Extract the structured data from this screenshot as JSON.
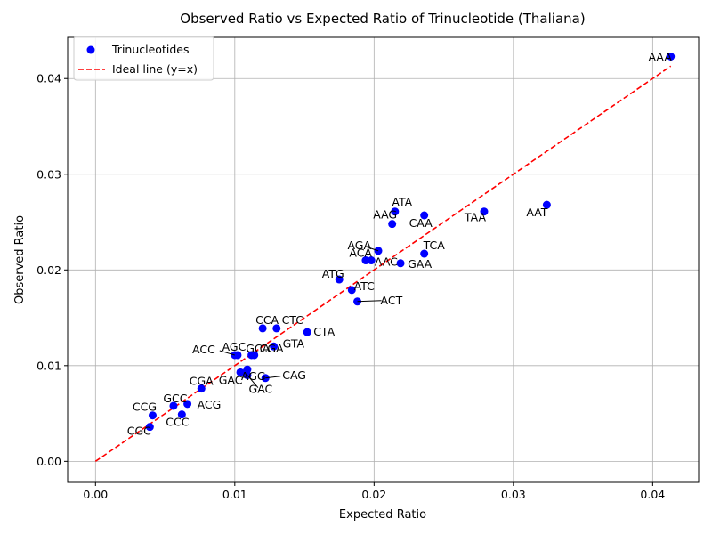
{
  "chart_data": {
    "type": "scatter",
    "title": "Observed Ratio vs Expected Ratio of Trinucleotide (Thaliana)",
    "xlabel": "Expected Ratio",
    "ylabel": "Observed Ratio",
    "xlim": [
      -0.002,
      0.0433
    ],
    "ylim": [
      -0.0022,
      0.0443
    ],
    "xticks": [
      "0.00",
      "0.01",
      "0.02",
      "0.03",
      "0.04"
    ],
    "yticks": [
      "0.00",
      "0.01",
      "0.02",
      "0.03",
      "0.04"
    ],
    "grid": true,
    "legend": {
      "position": "top-left",
      "entries": [
        "Trinucleotides",
        "Ideal line (y=x)"
      ]
    },
    "colors": {
      "points": "#0000ff",
      "ideal_line": "#ff0000"
    },
    "ideal_line": {
      "x": [
        0,
        0.0413
      ],
      "y": [
        0,
        0.0413
      ]
    },
    "points": [
      {
        "label": "AAA",
        "x": 0.0413,
        "y": 0.0423
      },
      {
        "label": "AAT",
        "x": 0.0324,
        "y": 0.0268
      },
      {
        "label": "TAA",
        "x": 0.0279,
        "y": 0.0261
      },
      {
        "label": "ATA",
        "x": 0.0215,
        "y": 0.0261
      },
      {
        "label": "CAA",
        "x": 0.0236,
        "y": 0.0257
      },
      {
        "label": "AAG",
        "x": 0.0213,
        "y": 0.0248
      },
      {
        "label": "AGA",
        "x": 0.0203,
        "y": 0.022
      },
      {
        "label": "TCA",
        "x": 0.0236,
        "y": 0.0217
      },
      {
        "label": "AAC",
        "x": 0.0194,
        "y": 0.021
      },
      {
        "label": "ACA",
        "x": 0.0198,
        "y": 0.021
      },
      {
        "label": "GAA",
        "x": 0.0219,
        "y": 0.0207
      },
      {
        "label": "ATG",
        "x": 0.0175,
        "y": 0.019
      },
      {
        "label": "ATC",
        "x": 0.0184,
        "y": 0.0179
      },
      {
        "label": "ACT",
        "x": 0.0188,
        "y": 0.0167
      },
      {
        "label": "CCA",
        "x": 0.012,
        "y": 0.0139
      },
      {
        "label": "CTC",
        "x": 0.013,
        "y": 0.0139
      },
      {
        "label": "CTA",
        "x": 0.0152,
        "y": 0.0135
      },
      {
        "label": "GTA",
        "x": 0.0128,
        "y": 0.012
      },
      {
        "label": "ACC",
        "x": 0.01,
        "y": 0.0111
      },
      {
        "label": "AGC",
        "x": 0.0102,
        "y": 0.0111
      },
      {
        "label": "CGA",
        "x": 0.0112,
        "y": 0.0111
      },
      {
        "label": "GCA",
        "x": 0.0114,
        "y": 0.0111
      },
      {
        "label": "AGG",
        "x": 0.0109,
        "y": 0.0096
      },
      {
        "label": "GAC",
        "x": 0.0104,
        "y": 0.0093
      },
      {
        "label": "GAC",
        "x": 0.0109,
        "y": 0.009
      },
      {
        "label": "CAG",
        "x": 0.0122,
        "y": 0.0087
      },
      {
        "label": "CGA",
        "x": 0.0076,
        "y": 0.0076
      },
      {
        "label": "GCC",
        "x": 0.0056,
        "y": 0.0058
      },
      {
        "label": "ACG",
        "x": 0.0066,
        "y": 0.006
      },
      {
        "label": "CCG",
        "x": 0.0041,
        "y": 0.0048
      },
      {
        "label": "CCC",
        "x": 0.0062,
        "y": 0.0049
      },
      {
        "label": "CGC",
        "x": 0.0039,
        "y": 0.0036
      }
    ]
  }
}
